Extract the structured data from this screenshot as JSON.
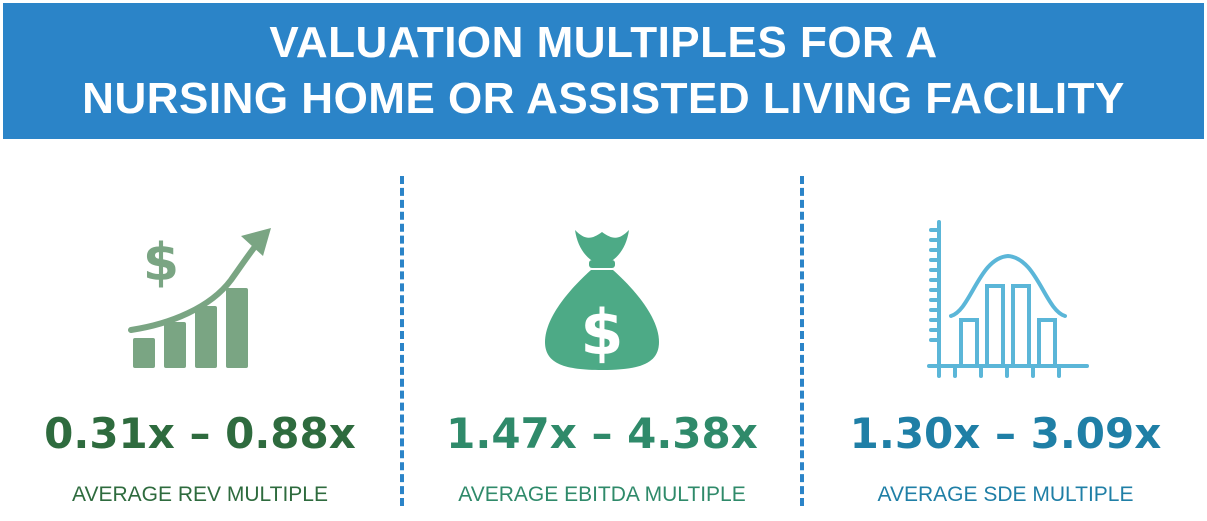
{
  "banner": {
    "title_line1": "VALUATION MULTIPLES FOR A",
    "title_line2": "NURSING HOME OR ASSISTED LIVING FACILITY",
    "color": "#2b84c8"
  },
  "metrics": [
    {
      "icon": "growth-chart-dollar-icon",
      "range": "0.31x – 0.88x",
      "label": "AVERAGE REV MULTIPLE",
      "color": "#2e6b3e",
      "icon_color": "#7aa583"
    },
    {
      "icon": "money-bag-icon",
      "range": "1.47x – 4.38x",
      "label": "AVERAGE EBITDA MULTIPLE",
      "color": "#2f8a6a",
      "icon_color": "#4daa86"
    },
    {
      "icon": "bell-curve-histogram-icon",
      "range": "1.30x – 3.09x",
      "label": "AVERAGE SDE MULTIPLE",
      "color": "#1f7fa6",
      "icon_color": "#5bb6d8"
    }
  ]
}
